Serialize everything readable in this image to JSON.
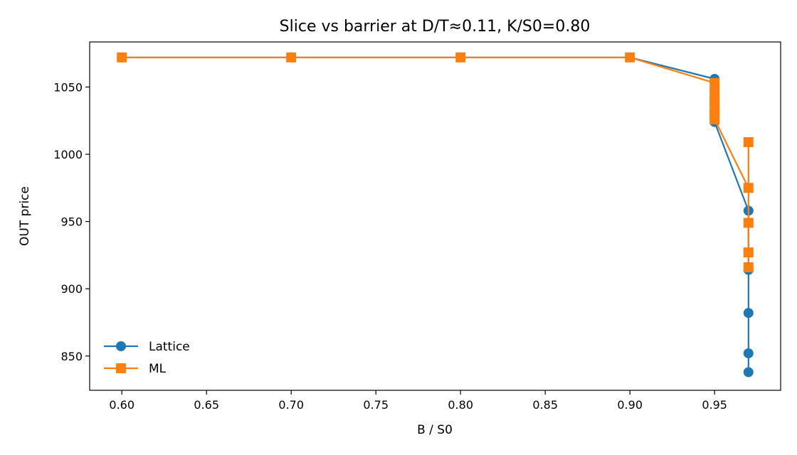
{
  "chart_data": {
    "type": "line",
    "title": "Slice vs barrier at D/T≈0.11, K/S0=0.80",
    "xlabel": "B / S0",
    "ylabel": "OUT price",
    "xlim": [
      0.581,
      0.989
    ],
    "ylim": [
      824.5,
      1083.5
    ],
    "xticks": [
      0.6,
      0.65,
      0.7,
      0.75,
      0.8,
      0.85,
      0.9,
      0.95
    ],
    "xtick_labels": [
      "0.60",
      "0.65",
      "0.70",
      "0.75",
      "0.80",
      "0.85",
      "0.90",
      "0.95"
    ],
    "yticks": [
      850,
      900,
      950,
      1000,
      1050
    ],
    "ytick_labels": [
      "850",
      "900",
      "950",
      "1000",
      "1050"
    ],
    "grid": false,
    "legend_position": "lower-left",
    "series": [
      {
        "name": "Lattice",
        "color": "#1f77b4",
        "marker": "circle",
        "x": [
          0.6,
          0.7,
          0.8,
          0.9,
          0.95,
          0.95,
          0.95,
          0.95,
          0.95,
          0.95,
          0.97,
          0.97,
          0.97,
          0.97,
          0.97
        ],
        "y": [
          1072,
          1072,
          1072,
          1072,
          1056,
          1048,
          1040,
          1032,
          1028,
          1024,
          958,
          914,
          882,
          852,
          838
        ]
      },
      {
        "name": "ML",
        "color": "#ff7f0e",
        "marker": "square",
        "x": [
          0.6,
          0.7,
          0.8,
          0.9,
          0.95,
          0.95,
          0.95,
          0.95,
          0.95,
          0.95,
          0.97,
          0.97,
          0.97,
          0.97,
          0.97
        ],
        "y": [
          1072,
          1072,
          1072,
          1072,
          1053,
          1046,
          1040,
          1035,
          1030,
          1026,
          975,
          1009,
          949,
          927,
          916
        ]
      }
    ]
  }
}
